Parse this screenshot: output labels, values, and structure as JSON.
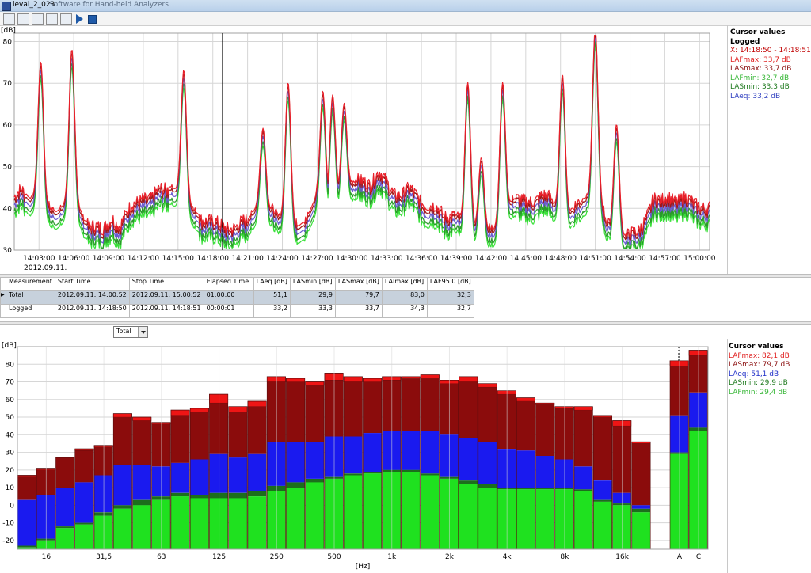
{
  "window": {
    "title": "levai_2_023",
    "subtitle": "Software for Hand-held Analyzers"
  },
  "toolbar": {
    "icons": [
      "chart-line-icon",
      "folder-icon",
      "bar-chart-icon",
      "spectrum-icon",
      "export-icon",
      "play-icon",
      "stop-icon"
    ]
  },
  "top_chart": {
    "y_unit": "[dB]",
    "y_ticks": [
      "80",
      "70",
      "60",
      "50",
      "40",
      "30"
    ],
    "x_ticks": [
      "14:03:00",
      "14:06:00",
      "14:09:00",
      "14:12:00",
      "14:15:00",
      "14:18:00",
      "14:21:00",
      "14:24:00",
      "14:27:00",
      "14:30:00",
      "14:33:00",
      "14:36:00",
      "14:39:00",
      "14:42:00",
      "14:45:00",
      "14:48:00",
      "14:51:00",
      "14:54:00",
      "14:57:00",
      "15:00:00"
    ],
    "date_label": "2012.09.11.",
    "cursor_time": "14:18:50"
  },
  "top_cursor": {
    "title": "Cursor values",
    "subtitle": "Logged",
    "lines": [
      {
        "text": "X: 14:18:50 - 14:18:51",
        "color": "#c00000"
      },
      {
        "text": "LAFmax: 33,7 dB",
        "color": "#e02020"
      },
      {
        "text": "LASmax: 33,7 dB",
        "color": "#8b1010"
      },
      {
        "text": "LAFmin: 32,7 dB",
        "color": "#3ab83a"
      },
      {
        "text": "LASmin: 33,3 dB",
        "color": "#1f7a1f"
      },
      {
        "text": "LAeq: 33,2 dB",
        "color": "#3040c0"
      }
    ]
  },
  "table": {
    "headers": [
      "Measurement",
      "Start Time",
      "Stop Time",
      "Elapsed Time",
      "LAeq [dB]",
      "LASmin [dB]",
      "LASmax [dB]",
      "LAImax [dB]",
      "LAF95.0 [dB]"
    ],
    "rows": [
      [
        "Total",
        "2012.09.11. 14:00:52",
        "2012.09.11. 15:00:52",
        "01:00:00",
        "51,1",
        "29,9",
        "79,7",
        "83,0",
        "32,3"
      ],
      [
        "Logged",
        "2012.09.11. 14:18:50",
        "2012.09.11. 14:18:51",
        "00:00:01",
        "33,2",
        "33,3",
        "33,7",
        "34,3",
        "32,7"
      ]
    ]
  },
  "selector": {
    "value": "Total"
  },
  "bottom_cursor": {
    "title": "Cursor values",
    "lines": [
      {
        "text": "LAFmax: 82,1 dB",
        "color": "#e02020"
      },
      {
        "text": "LASmax: 79,7 dB",
        "color": "#8b1010"
      },
      {
        "text": "LAeq: 51,1 dB",
        "color": "#2030c8"
      },
      {
        "text": "LASmin: 29,9 dB",
        "color": "#1f7a1f"
      },
      {
        "text": "LAFmin: 29,4 dB",
        "color": "#3ab83a"
      }
    ]
  },
  "chart_data": [
    {
      "type": "line",
      "ylabel": "[dB]",
      "ylim": [
        30,
        82
      ],
      "x_range": [
        "14:00:52",
        "15:00:52"
      ],
      "grid": true,
      "series": [
        {
          "name": "LAFmax",
          "color": "#e8202a"
        },
        {
          "name": "LASmax",
          "color": "#a01818"
        },
        {
          "name": "LAeq",
          "color": "#6a5cd0"
        },
        {
          "name": "LASmin",
          "color": "#2a9a2a"
        },
        {
          "name": "LAFmin",
          "color": "#39e039"
        }
      ],
      "baseline_profile": [
        [
          "14:00:52",
          40
        ],
        [
          "14:01:30",
          42
        ],
        [
          "14:02:20",
          40
        ],
        [
          "14:02:50",
          42
        ],
        [
          "14:03:30",
          38
        ],
        [
          "14:04:30",
          37
        ],
        [
          "14:05:20",
          39
        ],
        [
          "14:06:10",
          40
        ],
        [
          "14:06:50",
          35
        ],
        [
          "14:07:40",
          34
        ],
        [
          "14:08:30",
          32
        ],
        [
          "14:09:20",
          36
        ],
        [
          "14:10:00",
          34
        ],
        [
          "14:11:00",
          38
        ],
        [
          "14:12:00",
          41
        ],
        [
          "14:12:40",
          40
        ],
        [
          "14:13:30",
          42
        ],
        [
          "14:14:20",
          43
        ],
        [
          "14:15:00",
          42
        ],
        [
          "14:15:40",
          39
        ],
        [
          "14:16:30",
          37
        ],
        [
          "14:17:20",
          35
        ],
        [
          "14:18:00",
          34
        ],
        [
          "14:19:00",
          34
        ],
        [
          "14:20:00",
          33
        ],
        [
          "14:21:00",
          35
        ],
        [
          "14:22:00",
          39
        ],
        [
          "14:22:40",
          38
        ],
        [
          "14:23:30",
          36
        ],
        [
          "14:24:20",
          35
        ],
        [
          "14:25:10",
          33
        ],
        [
          "14:26:00",
          35
        ],
        [
          "14:27:00",
          41
        ],
        [
          "14:27:40",
          38
        ],
        [
          "14:28:20",
          40
        ],
        [
          "14:29:00",
          42
        ],
        [
          "14:29:40",
          43
        ],
        [
          "14:30:20",
          44
        ],
        [
          "14:31:00",
          45
        ],
        [
          "14:31:40",
          44
        ],
        [
          "14:32:20",
          46
        ],
        [
          "14:33:00",
          44
        ],
        [
          "14:33:40",
          42
        ],
        [
          "14:34:20",
          41
        ],
        [
          "14:35:00",
          42
        ],
        [
          "14:35:40",
          41
        ],
        [
          "14:36:20",
          39
        ],
        [
          "14:37:00",
          38
        ],
        [
          "14:38:00",
          36
        ],
        [
          "14:38:40",
          37
        ],
        [
          "14:39:20",
          35
        ],
        [
          "14:40:00",
          34
        ],
        [
          "14:40:40",
          33
        ],
        [
          "14:41:20",
          33
        ],
        [
          "14:42:00",
          32
        ],
        [
          "14:42:40",
          34
        ],
        [
          "14:43:20",
          38
        ],
        [
          "14:44:00",
          40
        ],
        [
          "14:44:40",
          39
        ],
        [
          "14:45:30",
          40
        ],
        [
          "14:46:20",
          41
        ],
        [
          "14:47:00",
          40
        ],
        [
          "14:47:40",
          38
        ],
        [
          "14:48:30",
          36
        ],
        [
          "14:49:20",
          38
        ],
        [
          "14:50:00",
          40
        ],
        [
          "14:50:40",
          41
        ],
        [
          "14:51:20",
          40
        ],
        [
          "14:52:00",
          34
        ],
        [
          "14:52:40",
          32
        ],
        [
          "14:53:20",
          31
        ],
        [
          "14:54:00",
          31
        ],
        [
          "14:54:40",
          32
        ],
        [
          "14:55:20",
          36
        ],
        [
          "14:56:00",
          40
        ],
        [
          "14:56:40",
          39
        ],
        [
          "14:57:20",
          41
        ],
        [
          "14:58:00",
          40
        ],
        [
          "14:58:40",
          40
        ],
        [
          "14:59:20",
          39
        ],
        [
          "15:00:00",
          39
        ],
        [
          "15:00:52",
          38
        ]
      ],
      "peaks": [
        [
          "14:03:10",
          73
        ],
        [
          "14:05:50",
          76
        ],
        [
          "14:15:30",
          71
        ],
        [
          "14:22:20",
          57
        ],
        [
          "14:24:30",
          68
        ],
        [
          "14:27:30",
          66
        ],
        [
          "14:28:20",
          65
        ],
        [
          "14:29:20",
          63
        ],
        [
          "14:40:00",
          68
        ],
        [
          "14:41:10",
          50
        ],
        [
          "14:43:00",
          68
        ],
        [
          "14:48:10",
          70
        ],
        [
          "14:51:00",
          81
        ],
        [
          "14:52:50",
          58
        ]
      ]
    },
    {
      "type": "bar",
      "ylabel": "[dB]",
      "xlabel": "[Hz]",
      "ylim": [
        -25,
        90
      ],
      "tick_labels": {
        "16": "16",
        "31.5": "31,5",
        "63": "63",
        "125": "125",
        "250": "250",
        "500": "500",
        "1k": "1k",
        "2k": "2k",
        "4k": "4k",
        "8k": "8k",
        "16k": "16k",
        "A": "A",
        "C": "C"
      },
      "categories": [
        "12.5",
        "16",
        "20",
        "25",
        "31.5",
        "40",
        "50",
        "63",
        "80",
        "100",
        "125",
        "160",
        "200",
        "250",
        "315",
        "400",
        "500",
        "630",
        "800",
        "1k",
        "1.25k",
        "1.6k",
        "2k",
        "2.5k",
        "3.15k",
        "4k",
        "5k",
        "6.3k",
        "8k",
        "10k",
        "12.5k",
        "16k",
        "20k",
        "A",
        "C"
      ],
      "series": [
        {
          "name": "LAFmax",
          "color": "#ee1515",
          "values": [
            17,
            21,
            27,
            32,
            34,
            52,
            50,
            47,
            54,
            55,
            63,
            56,
            59,
            73,
            72,
            70,
            75,
            73,
            72,
            73,
            73,
            74,
            71,
            73,
            69,
            65,
            61,
            58,
            56,
            56,
            51,
            48,
            36,
            82,
            88
          ]
        },
        {
          "name": "LASmax",
          "color": "#8b0c0c",
          "values": [
            16,
            20,
            27,
            31,
            33,
            50,
            48,
            46,
            51,
            53,
            58,
            53,
            56,
            70,
            70,
            68,
            71,
            70,
            70,
            71,
            72,
            72,
            69,
            70,
            67,
            63,
            59,
            57,
            55,
            54,
            50,
            45,
            35,
            79,
            85
          ]
        },
        {
          "name": "LAeq",
          "color": "#1a1aef",
          "values": [
            3,
            6,
            10,
            13,
            17,
            23,
            23,
            22,
            24,
            26,
            29,
            27,
            29,
            36,
            36,
            36,
            39,
            39,
            41,
            42,
            42,
            42,
            40,
            38,
            36,
            32,
            31,
            28,
            26,
            22,
            14,
            7,
            0,
            51,
            64
          ]
        },
        {
          "name": "LASmin",
          "color": "#1c6e1c",
          "values": [
            -23,
            -19,
            -12,
            -10,
            -4,
            0,
            3,
            5,
            7,
            6,
            7,
            7,
            8,
            11,
            13,
            15,
            16,
            18,
            19,
            20,
            20,
            18,
            16,
            14,
            12,
            10,
            10,
            10,
            10,
            9,
            3,
            1,
            -2,
            30,
            44
          ]
        },
        {
          "name": "LAFmin",
          "color": "#1fe11f",
          "values": [
            -24,
            -20,
            -13,
            -11,
            -6,
            -2,
            0,
            3,
            5,
            4,
            4,
            4,
            5,
            8,
            10,
            13,
            15,
            17,
            18,
            19,
            19,
            17,
            15,
            12,
            10,
            9,
            9,
            9,
            9,
            8,
            2,
            0,
            -4,
            29,
            42
          ]
        }
      ]
    }
  ]
}
